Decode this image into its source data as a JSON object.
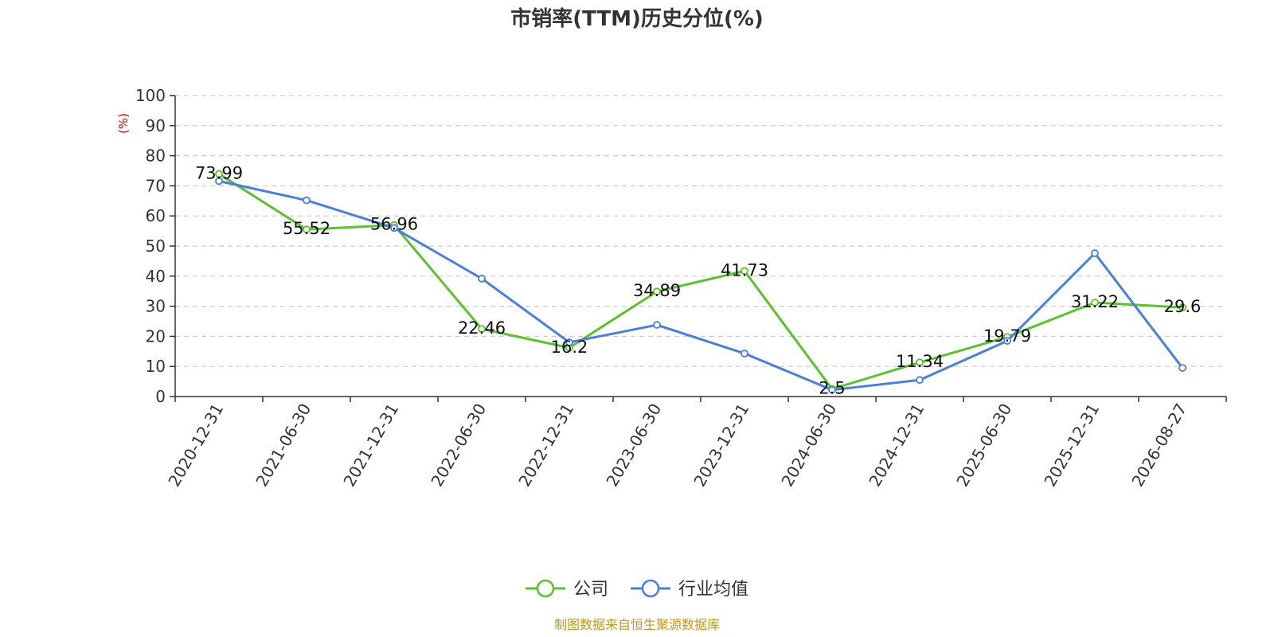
{
  "chart_data": {
    "type": "line",
    "title": "市销率(TTM)历史分位(%)",
    "ylabel": "(%)",
    "ylim": [
      0,
      100
    ],
    "yticks": [
      0,
      10,
      20,
      30,
      40,
      50,
      60,
      70,
      80,
      90,
      100
    ],
    "categories": [
      "2020-12-31",
      "2021-06-30",
      "2021-12-31",
      "2022-06-30",
      "2022-12-31",
      "2023-06-30",
      "2023-12-31",
      "2024-06-30",
      "2024-12-31",
      "2025-06-30",
      "2025-12-31",
      "2026-08-27"
    ],
    "grid": true,
    "legend_position": "bottom-center",
    "series": [
      {
        "name": "公司",
        "color": "#5cc22c",
        "values": [
          73.99,
          55.52,
          56.96,
          22.46,
          16.2,
          34.89,
          41.73,
          2.5,
          11.34,
          19.79,
          31.22,
          29.6
        ],
        "labels": [
          "73.99",
          "55.52",
          "56.96",
          "22.46",
          "16.2",
          "34.89",
          "41.73",
          "2.5",
          "11.34",
          "19.79",
          "31.22",
          "29.6"
        ]
      },
      {
        "name": "行业均值",
        "color": "#4a7fdb",
        "values": [
          71.6,
          65.2,
          56.0,
          39.2,
          18.0,
          23.8,
          14.3,
          2.2,
          5.5,
          18.5,
          47.6,
          9.5
        ]
      }
    ]
  },
  "source_text": "制图数据来自恒生聚源数据库"
}
